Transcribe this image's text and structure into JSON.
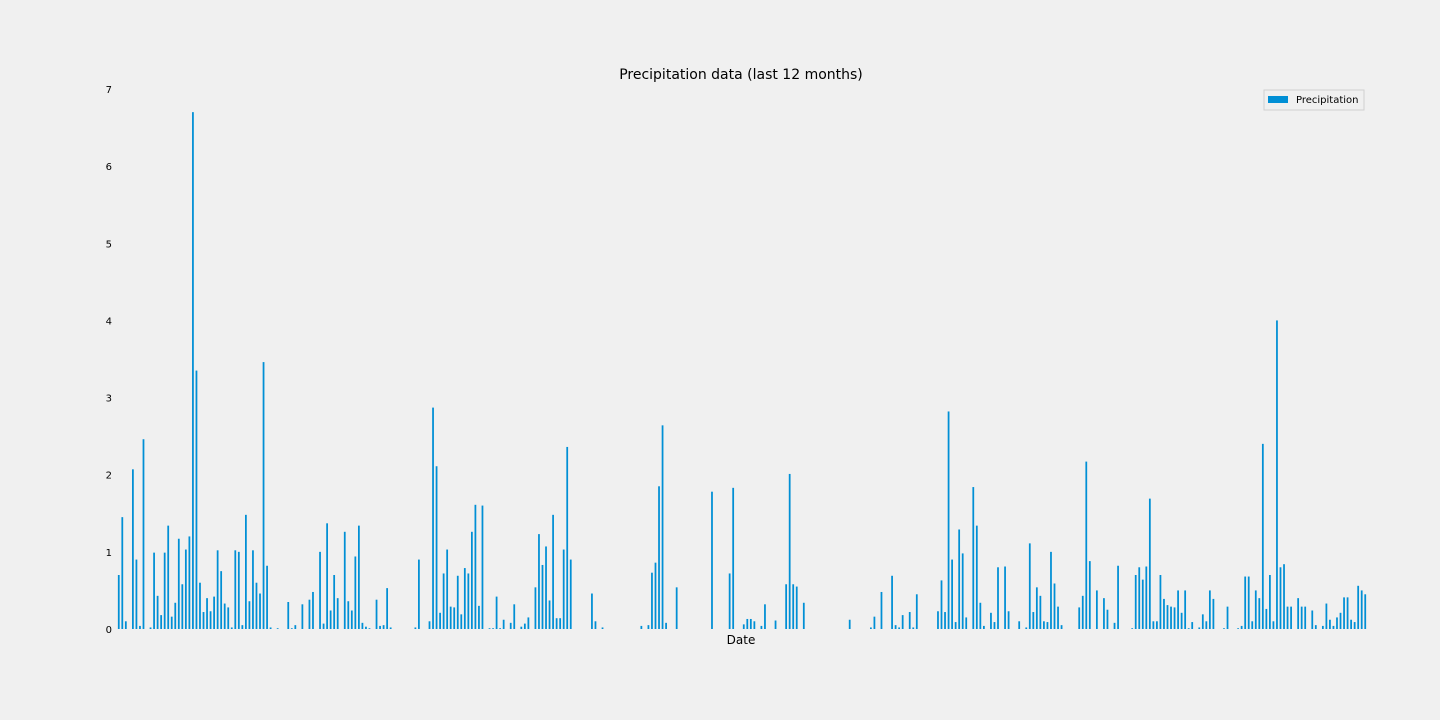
{
  "chart_data": {
    "type": "bar",
    "title": "Precipitation data (last 12 months)",
    "xlabel": "Date",
    "ylabel": "",
    "ylim": [
      0,
      7
    ],
    "yticks": [
      "0",
      "1",
      "2",
      "3",
      "4",
      "5",
      "6",
      "7"
    ],
    "grid": false,
    "legend": {
      "position": "top-right"
    },
    "series": [
      {
        "name": "Precipitation",
        "color": "#008fd5",
        "values": [
          0.7,
          1.45,
          0.1,
          0,
          2.07,
          0.9,
          0.04,
          2.46,
          0,
          0.02,
          0.99,
          0.43,
          0.18,
          0.99,
          1.34,
          0.16,
          0.34,
          1.17,
          0.58,
          1.03,
          1.2,
          6.7,
          3.35,
          0.6,
          0.22,
          0.4,
          0.23,
          0.42,
          1.02,
          0.75,
          0.33,
          0.28,
          0.02,
          1.02,
          1,
          0.05,
          1.48,
          0.36,
          1.02,
          0.6,
          0.46,
          3.46,
          0.82,
          0.02,
          0,
          0.01,
          0,
          0,
          0.35,
          0.01,
          0.05,
          0,
          0.32,
          0,
          0.38,
          0.48,
          0,
          1,
          0.07,
          1.37,
          0.24,
          0.7,
          0.4,
          0,
          1.26,
          0.36,
          0.24,
          0.94,
          1.34,
          0.08,
          0.03,
          0.01,
          0,
          0.38,
          0.04,
          0.05,
          0.53,
          0.02,
          0,
          0,
          0,
          0,
          0,
          0,
          0.02,
          0.9,
          0,
          0,
          0.1,
          2.87,
          2.11,
          0.21,
          0.72,
          1.03,
          0.29,
          0.28,
          0.69,
          0.19,
          0.79,
          0.72,
          1.26,
          1.61,
          0.3,
          1.6,
          0,
          0.01,
          0.01,
          0.42,
          0.01,
          0.12,
          0,
          0.08,
          0.32,
          0,
          0.03,
          0.07,
          0.15,
          0,
          0.54,
          1.23,
          0.83,
          1.07,
          0.37,
          1.48,
          0.14,
          0.14,
          1.03,
          2.36,
          0.9,
          0,
          0,
          0,
          0,
          0,
          0.46,
          0.1,
          0,
          0.02,
          0,
          0,
          0,
          0,
          0,
          0,
          0,
          0,
          0,
          0,
          0.04,
          0,
          0.05,
          0.73,
          0.86,
          1.85,
          2.64,
          0.08,
          0,
          0,
          0.54,
          0,
          0,
          0,
          0,
          0,
          0,
          0,
          0,
          0,
          1.78,
          0,
          0,
          0,
          0,
          0.72,
          1.83,
          0,
          0,
          0.06,
          0.13,
          0.13,
          0.1,
          0,
          0.04,
          0.32,
          0,
          0,
          0.11,
          0,
          0,
          0.58,
          2.01,
          0.58,
          0.55,
          0,
          0.34,
          0,
          0,
          0,
          0,
          0,
          0,
          0,
          0,
          0,
          0,
          0,
          0,
          0.12,
          0,
          0,
          0,
          0,
          0,
          0.02,
          0.16,
          0,
          0.48,
          0,
          0,
          0.69,
          0.05,
          0.02,
          0.18,
          0,
          0.22,
          0.02,
          0.45,
          0,
          0,
          0,
          0,
          0,
          0.23,
          0.63,
          0.22,
          2.82,
          0.9,
          0.09,
          1.29,
          0.98,
          0.15,
          0,
          1.84,
          1.34,
          0.34,
          0.04,
          0,
          0.21,
          0.09,
          0.8,
          0,
          0.81,
          0.23,
          0,
          0,
          0.1,
          0,
          0.02,
          1.11,
          0.22,
          0.54,
          0.43,
          0.1,
          0.09,
          1,
          0.59,
          0.29,
          0.05,
          0,
          0,
          0,
          0,
          0.28,
          0.43,
          2.17,
          0.88,
          0,
          0.5,
          0,
          0.4,
          0.25,
          0,
          0.08,
          0.82,
          0,
          0,
          0,
          0.01,
          0.7,
          0.8,
          0.64,
          0.81,
          1.69,
          0.1,
          0.1,
          0.7,
          0.39,
          0.31,
          0.29,
          0.28,
          0.5,
          0.21,
          0.5,
          0.01,
          0.09,
          0,
          0.02,
          0.19,
          0.1,
          0.5,
          0.39,
          0,
          0,
          0.01,
          0.29,
          0,
          0,
          0.01,
          0.04,
          0.68,
          0.68,
          0.1,
          0.5,
          0.4,
          2.4,
          0.26,
          0.7,
          0.1,
          4,
          0.8,
          0.84,
          0.29,
          0.29,
          0,
          0.4,
          0.29,
          0.29,
          0,
          0.24,
          0.05,
          0,
          0.04,
          0.33,
          0.12,
          0.04,
          0.15,
          0.21,
          0.41,
          0.41,
          0.12,
          0.09,
          0.56,
          0.5,
          0.45
        ]
      }
    ]
  }
}
